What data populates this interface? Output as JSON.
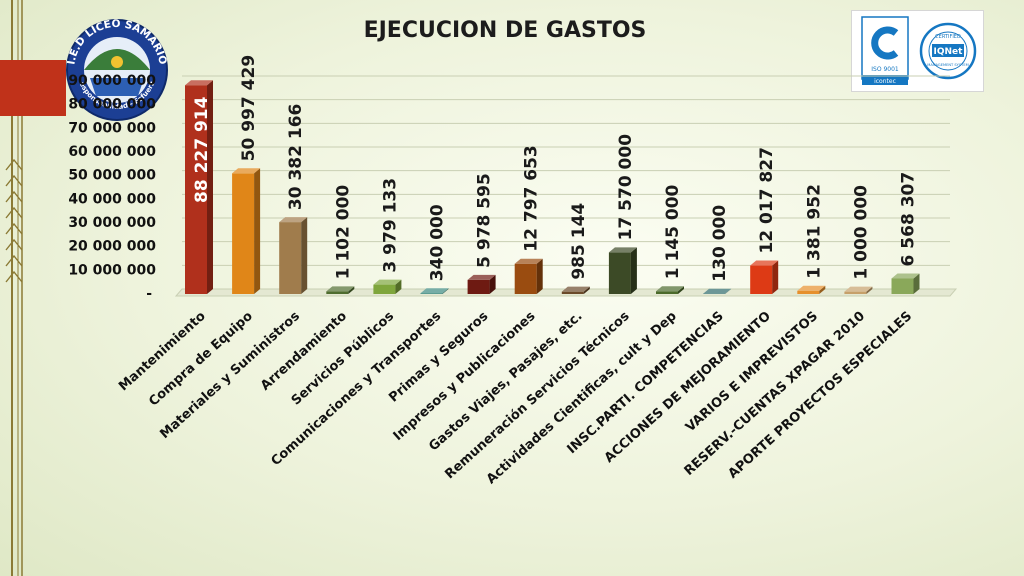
{
  "school_logo": {
    "text_top": "I.E.D LICEO SAMARIO",
    "text_bottom": "Responsabilidad - Esfuerzo"
  },
  "cert_logos": {
    "iso_label": "ISO 9001",
    "icontec_label": "icontec",
    "iqnet_top": "CERTIFIED",
    "iqnet_name": "IQNet",
    "iqnet_bottom": "MANAGEMENT SYSTEM"
  },
  "chart_data": {
    "type": "bar",
    "title": "EJECUCION DE GASTOS",
    "categories": [
      "Mantenimiento",
      "Compra de Equipo",
      "Materiales y Suministros",
      "Arrendamiento",
      "Servicios Públicos",
      "Comunicaciones y Transportes",
      "Primas y Seguros",
      "Impresos y Publicaciones",
      "Gastos Viajes, Pasajes, etc.",
      "Remuneración Servicios Técnicos",
      "Actividades Cientificas, cult y Dep",
      "INSC.PARTI. COMPETENCIAS",
      "ACCIONES DE MEJORAMIENTO",
      "VARIOS E IMPREVISTOS",
      "RESERV.-CUENTAS XPAGAR 2010",
      "APORTE PROYECTOS ESPECIALES"
    ],
    "values": [
      88227914,
      50997429,
      30382166,
      1102000,
      3979133,
      340000,
      5978595,
      12797653,
      985144,
      17570000,
      1145000,
      130000,
      12017827,
      1381952,
      1000000,
      6568307
    ],
    "value_labels": [
      "88 227 914",
      "50 997 429",
      "30 382 166",
      "1 102 000",
      "3 979 133",
      "340 000",
      "5 978 595",
      "12 797 653",
      "985 144",
      "17 570 000",
      "1 145 000",
      "130 000",
      "12 017 827",
      "1 381 952",
      "1 000 000",
      "6 568 307"
    ],
    "bar_colors": [
      "#b0301c",
      "#e08618",
      "#a07c4c",
      "#4f6d2f",
      "#7fa63c",
      "#3d8a80",
      "#6e1a12",
      "#9a4c10",
      "#6b4a2a",
      "#3c4a26",
      "#4b6a2b",
      "#2e6b6b",
      "#dd3a15",
      "#e6902c",
      "#c6a06a",
      "#8aa85a"
    ],
    "label_colors": [
      "#ffffff",
      "#1a1a1a",
      "#1a1a1a",
      "#1a1a1a",
      "#1a1a1a",
      "#1a1a1a",
      "#1a1a1a",
      "#1a1a1a",
      "#1a1a1a",
      "#1a1a1a",
      "#1a1a1a",
      "#1a1a1a",
      "#1a1a1a",
      "#1a1a1a",
      "#1a1a1a",
      "#1a1a1a"
    ],
    "y_ticks": [
      0,
      10000000,
      20000000,
      30000000,
      40000000,
      50000000,
      60000000,
      70000000,
      80000000,
      90000000
    ],
    "y_tick_labels": [
      "-",
      "10 000 000",
      "20 000 000",
      "30 000 000",
      "40 000 000",
      "50 000 000",
      "60 000 000",
      "70 000 000",
      "80 000 000",
      "90 000 000"
    ],
    "ylim": [
      0,
      90000000
    ],
    "grid": true,
    "legend": "none"
  },
  "colors": {
    "accent_red": "#c0321a",
    "stripe": "#8b7a35",
    "logo_blue": "#1c3f94",
    "cert_blue": "#1577c2"
  }
}
